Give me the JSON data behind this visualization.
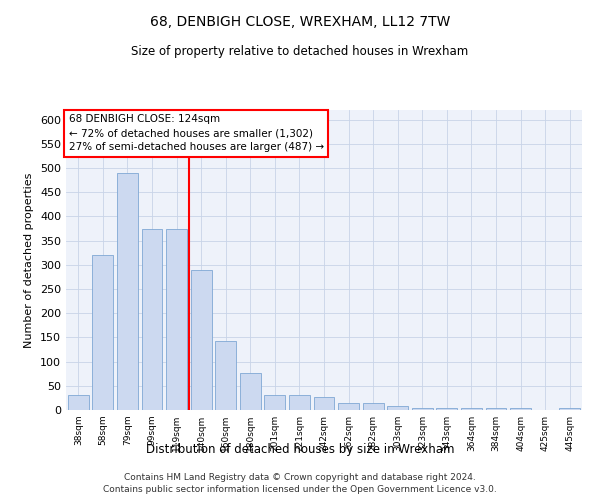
{
  "title": "68, DENBIGH CLOSE, WREXHAM, LL12 7TW",
  "subtitle": "Size of property relative to detached houses in Wrexham",
  "xlabel": "Distribution of detached houses by size in Wrexham",
  "ylabel": "Number of detached properties",
  "bar_labels": [
    "38sqm",
    "58sqm",
    "79sqm",
    "99sqm",
    "119sqm",
    "140sqm",
    "160sqm",
    "180sqm",
    "201sqm",
    "221sqm",
    "242sqm",
    "262sqm",
    "282sqm",
    "303sqm",
    "323sqm",
    "343sqm",
    "364sqm",
    "384sqm",
    "404sqm",
    "425sqm",
    "445sqm"
  ],
  "bar_values": [
    32,
    320,
    490,
    375,
    375,
    290,
    143,
    76,
    30,
    30,
    27,
    14,
    14,
    8,
    5,
    5,
    5,
    5,
    5,
    0,
    5
  ],
  "bar_color": "#ccd9f0",
  "bar_edgecolor": "#7fa8d4",
  "redline_x": 4.5,
  "annotation_line1": "68 DENBIGH CLOSE: 124sqm",
  "annotation_line2": "← 72% of detached houses are smaller (1,302)",
  "annotation_line3": "27% of semi-detached houses are larger (487) →",
  "annotation_box_color": "white",
  "annotation_edge_color": "red",
  "grid_color": "#c8d4e8",
  "background_color": "#eef2fa",
  "ylim": [
    0,
    620
  ],
  "yticks": [
    0,
    50,
    100,
    150,
    200,
    250,
    300,
    350,
    400,
    450,
    500,
    550,
    600
  ],
  "footer_line1": "Contains HM Land Registry data © Crown copyright and database right 2024.",
  "footer_line2": "Contains public sector information licensed under the Open Government Licence v3.0."
}
